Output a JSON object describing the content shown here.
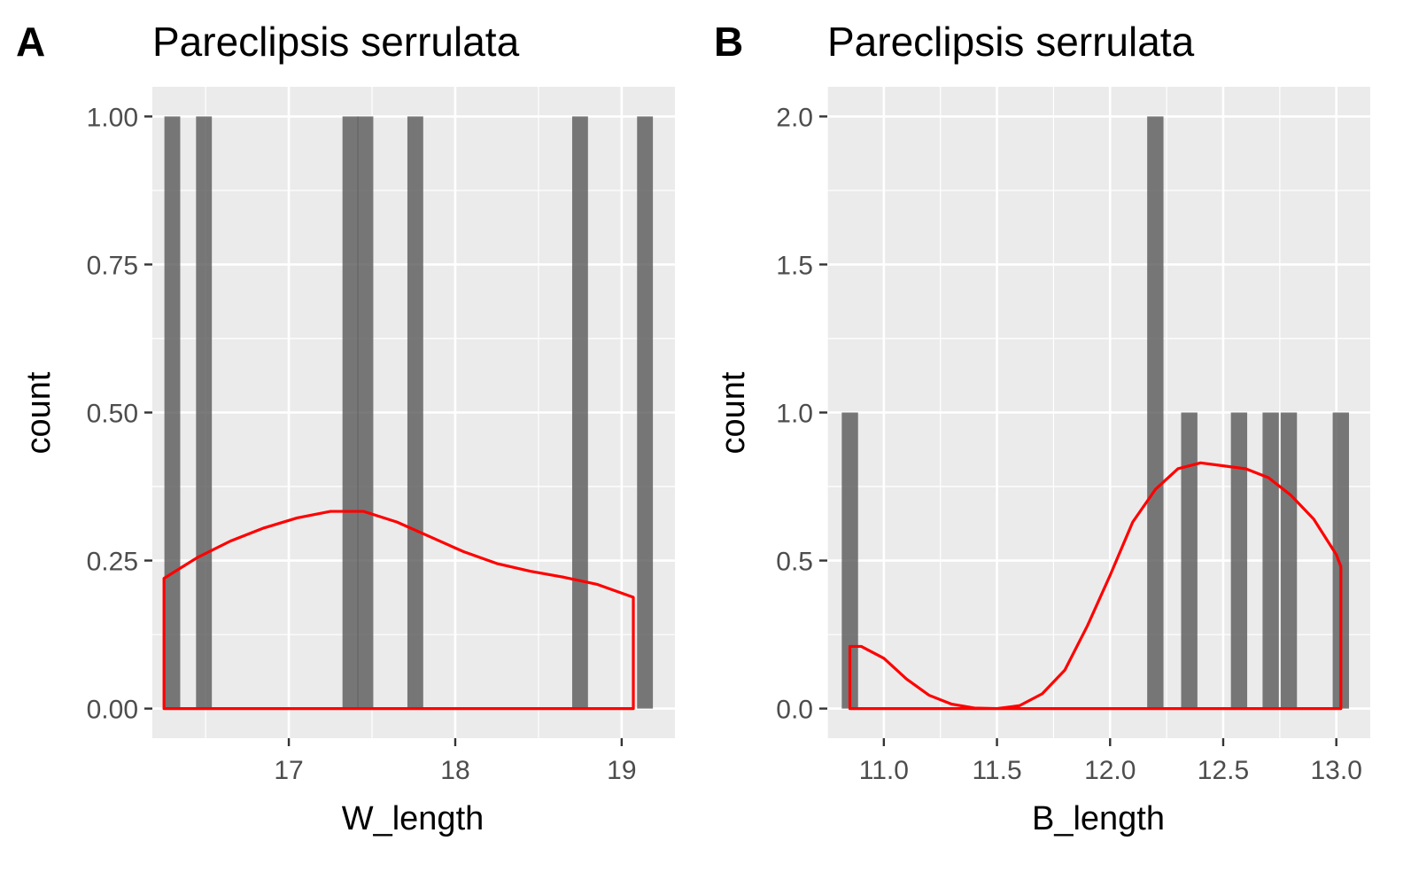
{
  "colors": {
    "panel_background": "#ebebeb",
    "grid_major": "#ffffff",
    "bar_fill": "#595959",
    "bar_opacity": 0.8,
    "density_line": "#ff0000",
    "tick_mark": "#333333",
    "tick_label": "#4d4d4d"
  },
  "chart_data": [
    {
      "panel_label": "A",
      "type": "bar",
      "title": "Pareclipsis serrulata",
      "xlabel": "W_length",
      "ylabel": "count",
      "xlim": [
        16.18,
        19.32
      ],
      "ylim": [
        -0.05,
        1.05
      ],
      "x_ticks": [
        17,
        18,
        19
      ],
      "x_tick_labels": [
        "17",
        "18",
        "19"
      ],
      "x_minor": [
        16.5,
        17.5,
        18.5
      ],
      "y_ticks": [
        0,
        0.25,
        0.5,
        0.75,
        1.0
      ],
      "y_tick_labels": [
        "0.00",
        "0.25",
        "0.50",
        "0.75",
        "1.00"
      ],
      "grid": true,
      "histogram": {
        "bin_width": 0.095,
        "bins": [
          {
            "x": 16.3,
            "count": 1
          },
          {
            "x": 16.49,
            "count": 1
          },
          {
            "x": 17.37,
            "count": 1
          },
          {
            "x": 17.46,
            "count": 1
          },
          {
            "x": 17.76,
            "count": 1
          },
          {
            "x": 18.75,
            "count": 1
          },
          {
            "x": 19.14,
            "count": 1
          }
        ]
      },
      "density": {
        "x": [
          16.25,
          16.45,
          16.65,
          16.85,
          17.05,
          17.25,
          17.45,
          17.65,
          17.85,
          18.05,
          18.25,
          18.45,
          18.65,
          18.85,
          19.07
        ],
        "y": [
          0.22,
          0.255,
          0.283,
          0.305,
          0.322,
          0.333,
          0.333,
          0.315,
          0.29,
          0.265,
          0.245,
          0.232,
          0.222,
          0.21,
          0.188
        ]
      }
    },
    {
      "panel_label": "B",
      "type": "bar",
      "title": "Pareclipsis serrulata",
      "xlabel": "B_length",
      "ylabel": "count",
      "xlim": [
        10.75,
        13.15
      ],
      "ylim": [
        -0.1,
        2.1
      ],
      "x_ticks": [
        11.0,
        11.5,
        12.0,
        12.5,
        13.0
      ],
      "x_tick_labels": [
        "11.0",
        "11.5",
        "12.0",
        "12.5",
        "13.0"
      ],
      "x_minor": [
        10.75,
        11.25,
        11.75,
        12.25,
        12.75
      ],
      "y_ticks": [
        0,
        0.5,
        1.0,
        1.5,
        2.0
      ],
      "y_tick_labels": [
        "0.0",
        "0.5",
        "1.0",
        "1.5",
        "2.0"
      ],
      "grid": true,
      "histogram": {
        "bin_width": 0.072,
        "bins": [
          {
            "x": 10.85,
            "count": 1
          },
          {
            "x": 12.2,
            "count": 2
          },
          {
            "x": 12.35,
            "count": 1
          },
          {
            "x": 12.57,
            "count": 1
          },
          {
            "x": 12.71,
            "count": 1
          },
          {
            "x": 12.79,
            "count": 1
          },
          {
            "x": 13.02,
            "count": 1
          }
        ]
      },
      "density": {
        "x": [
          10.85,
          10.9,
          11.0,
          11.1,
          11.2,
          11.3,
          11.4,
          11.5,
          11.6,
          11.7,
          11.8,
          11.9,
          12.0,
          12.1,
          12.2,
          12.3,
          12.4,
          12.5,
          12.6,
          12.7,
          12.8,
          12.9,
          13.0,
          13.02
        ],
        "y": [
          0.21,
          0.21,
          0.17,
          0.1,
          0.045,
          0.015,
          0.002,
          0.0,
          0.01,
          0.05,
          0.13,
          0.28,
          0.45,
          0.63,
          0.74,
          0.81,
          0.83,
          0.82,
          0.81,
          0.78,
          0.72,
          0.64,
          0.52,
          0.48
        ]
      }
    }
  ]
}
